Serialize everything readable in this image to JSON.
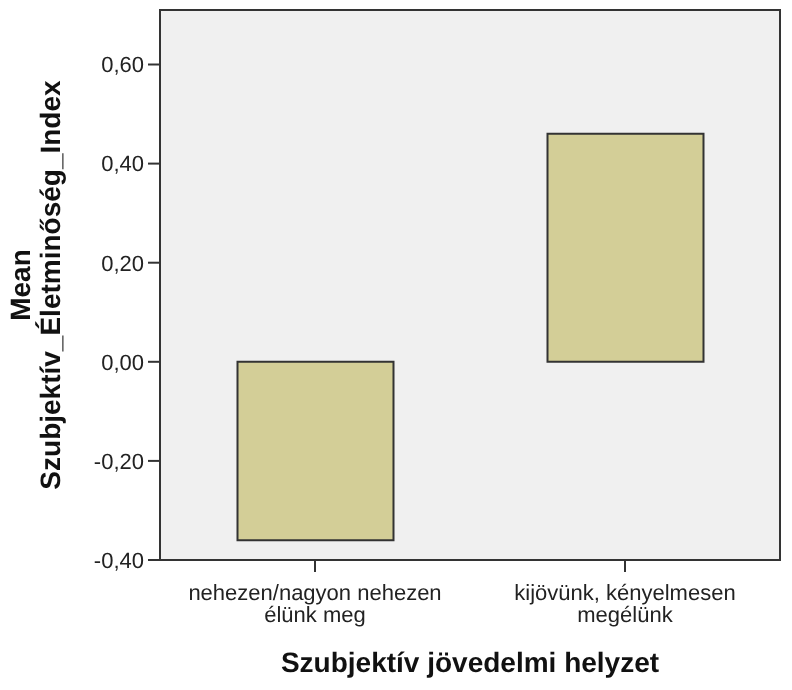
{
  "chart_data": {
    "type": "bar",
    "xlabel": "Szubjektív jövedelmi helyzet",
    "ylabel": "Mean Szubjektív_Életminőség_Index",
    "categories": [
      "nehezen/nagyon nehezen élünk meg",
      "kijövünk, kényelmesen megélünk"
    ],
    "values": [
      -0.36,
      0.46
    ],
    "color": "#d3ce97",
    "ylim": [
      -0.4,
      0.71
    ],
    "yticks": [
      {
        "value": -0.4,
        "label": "-0,40"
      },
      {
        "value": -0.2,
        "label": "-0,20"
      },
      {
        "value": 0,
        "label": "0,00"
      },
      {
        "value": 0.2,
        "label": "0,20"
      },
      {
        "value": 0.4,
        "label": "0,40"
      },
      {
        "value": 0.6,
        "label": "0,60"
      }
    ]
  }
}
